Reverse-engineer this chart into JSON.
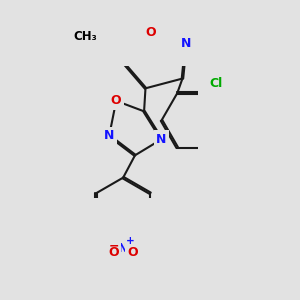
{
  "bg_color": "#e2e2e2",
  "bond_color": "#1a1a1a",
  "bond_lw": 1.5,
  "dbo": 0.055,
  "atom_colors": {
    "C": "#000000",
    "N": "#1414ff",
    "O": "#dd0000",
    "Cl": "#00aa00"
  },
  "afs": 9.0,
  "figsize": [
    3.0,
    3.0
  ],
  "dpi": 100
}
